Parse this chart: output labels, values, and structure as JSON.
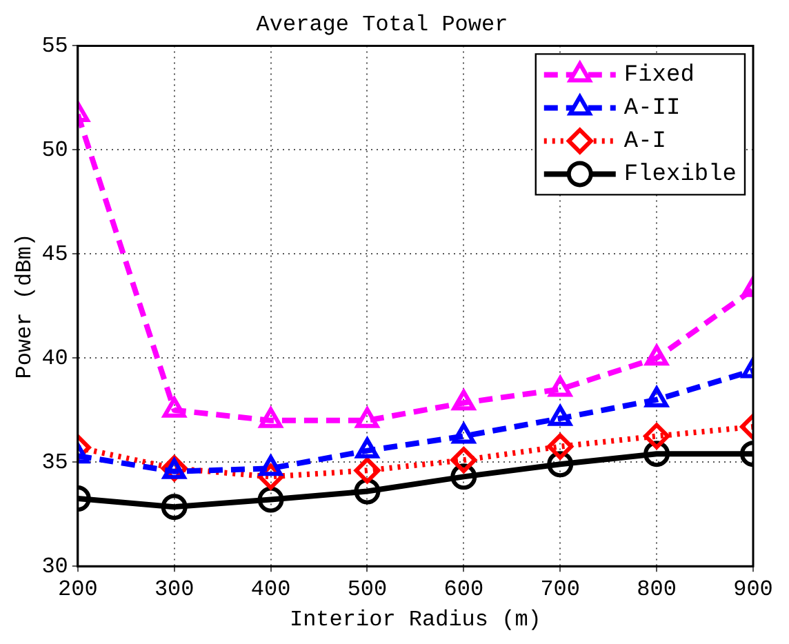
{
  "chart_data": {
    "type": "line",
    "title": "Average Total Power",
    "xlabel": "Interior Radius (m)",
    "ylabel": "Power (dBm)",
    "x": [
      200,
      300,
      400,
      500,
      600,
      700,
      800,
      900
    ],
    "xlim": [
      200,
      900
    ],
    "xticks": [
      200,
      300,
      400,
      500,
      600,
      700,
      800,
      900
    ],
    "ylim": [
      30,
      55
    ],
    "yticks": [
      30,
      35,
      40,
      45,
      50,
      55
    ],
    "grid": true,
    "legend": "top right",
    "series": [
      {
        "name": "Fixed",
        "color": "#ff00ff",
        "marker": "triangle",
        "line_style": "dashed",
        "values": [
          51.7,
          37.5,
          37.0,
          37.0,
          37.85,
          38.5,
          40.0,
          43.3
        ]
      },
      {
        "name": "A-II",
        "color": "#0000ff",
        "marker": "triangle",
        "line_style": "dashed",
        "values": [
          35.3,
          34.55,
          34.7,
          35.55,
          36.25,
          37.1,
          38.0,
          39.4
        ]
      },
      {
        "name": "A-I",
        "color": "#ff0000",
        "marker": "diamond",
        "line_style": "dotted",
        "values": [
          35.7,
          34.7,
          34.3,
          34.6,
          35.1,
          35.75,
          36.25,
          36.7
        ]
      },
      {
        "name": "Flexible",
        "color": "#000000",
        "marker": "circle",
        "line_style": "solid",
        "values": [
          33.25,
          32.85,
          33.2,
          33.6,
          34.3,
          34.9,
          35.4,
          35.4
        ]
      }
    ]
  }
}
